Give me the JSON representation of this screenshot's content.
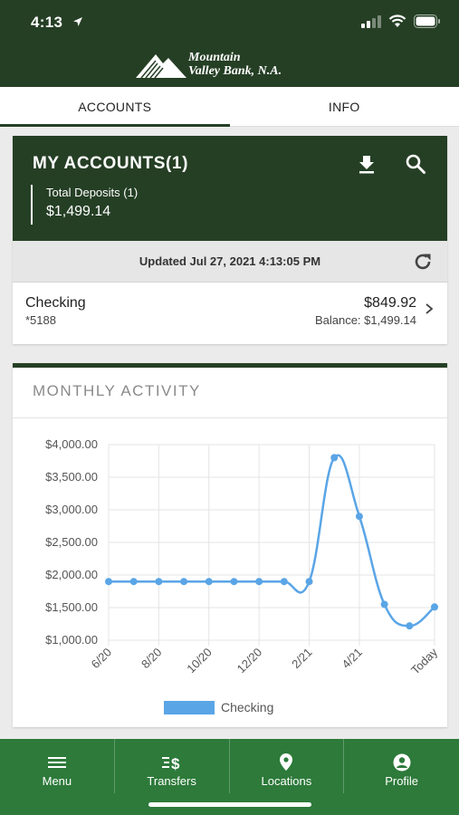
{
  "status_bar": {
    "time": "4:13"
  },
  "brand": {
    "line1": "Mountain",
    "line2": "Valley Bank, N.A."
  },
  "tabs": [
    {
      "label": "ACCOUNTS",
      "active": true
    },
    {
      "label": "INFO",
      "active": false
    }
  ],
  "accounts": {
    "title": "MY ACCOUNTS(1)",
    "deposits_label": "Total Deposits (1)",
    "deposits_value": "$1,499.14",
    "updated": "Updated Jul 27, 2021 4:13:05 PM",
    "items": [
      {
        "name": "Checking",
        "number": "*5188",
        "amount": "$849.92",
        "balance": "Balance: $1,499.14"
      }
    ]
  },
  "activity": {
    "title": "MONTHLY ACTIVITY"
  },
  "chart_data": {
    "type": "line",
    "title": "",
    "xlabel": "",
    "ylabel": "",
    "y_tick_labels": [
      "$4,000.00",
      "$3,500.00",
      "$3,000.00",
      "$2,500.00",
      "$2,000.00",
      "$1,500.00",
      "$1,000.00"
    ],
    "y_ticks": [
      4000,
      3500,
      3000,
      2500,
      2000,
      1500,
      1000
    ],
    "ylim": [
      1000,
      4000
    ],
    "x_tick_labels": [
      "6/20",
      "8/20",
      "10/20",
      "12/20",
      "2/21",
      "4/21",
      "Today"
    ],
    "x_tick_positions": [
      0,
      2,
      4,
      6,
      8,
      10,
      13
    ],
    "x": [
      0,
      1,
      2,
      3,
      4,
      5,
      6,
      7,
      8,
      9,
      10,
      11,
      12,
      13
    ],
    "grid": true,
    "legend_position": "bottom",
    "series": [
      {
        "name": "Checking",
        "color": "#5aa5e6",
        "values": [
          1900,
          1900,
          1900,
          1900,
          1900,
          1900,
          1900,
          1900,
          1900,
          3800,
          2900,
          1550,
          1220,
          1510
        ]
      }
    ]
  },
  "nav": [
    {
      "label": "Menu",
      "icon": "menu-icon"
    },
    {
      "label": "Transfers",
      "icon": "transfers-icon"
    },
    {
      "label": "Locations",
      "icon": "location-pin-icon"
    },
    {
      "label": "Profile",
      "icon": "profile-icon"
    }
  ],
  "colors": {
    "brand_dark": "#253f25",
    "nav_green": "#2d7a3a",
    "series_blue": "#5aa5e6"
  }
}
